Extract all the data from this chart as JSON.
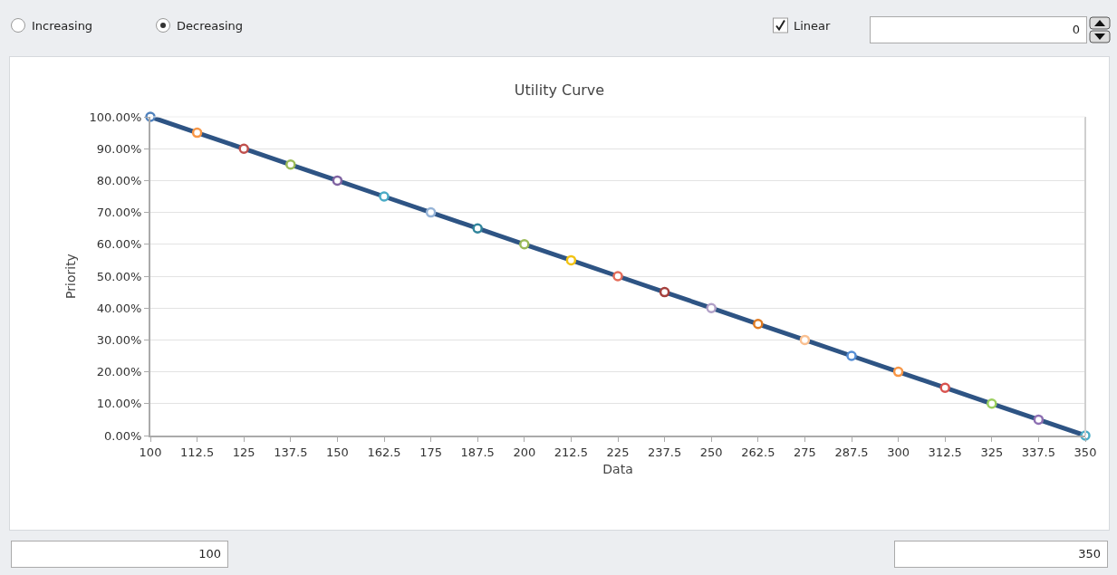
{
  "chart_data": {
    "type": "line",
    "title": "Utility Curve",
    "xlabel": "Data",
    "ylabel": "Priority",
    "x": [
      100,
      112.5,
      125,
      137.5,
      150,
      162.5,
      175,
      187.5,
      200,
      212.5,
      225,
      237.5,
      250,
      262.5,
      275,
      287.5,
      300,
      312.5,
      325,
      337.5,
      350
    ],
    "series": [
      {
        "color": "#2e5484",
        "values": [
          100,
          95,
          90,
          85,
          80,
          75,
          70,
          65,
          60,
          55,
          50,
          45,
          40,
          35,
          30,
          25,
          20,
          15,
          10,
          5,
          0
        ],
        "colors": [
          "#4f81bd",
          "#f79646",
          "#c0504d",
          "#9bbb59",
          "#8064a2",
          "#4bacc6",
          "#95b3d7",
          "#31859c",
          "#9bbb59",
          "#f2c314",
          "#e46c5a",
          "#a5403d",
          "#b1a0c7",
          "#e07b22",
          "#fac090",
          "#558ed5",
          "#f79646",
          "#d9534f",
          "#9bcf5f",
          "#8d6fb2",
          "#4bacc6"
        ]
      }
    ],
    "xlim": [
      100,
      350
    ],
    "xticks": [
      100,
      112.5,
      125,
      137.5,
      150,
      162.5,
      175,
      187.5,
      200,
      212.5,
      225,
      237.5,
      250,
      262.5,
      275,
      287.5,
      300,
      312.5,
      325,
      337.5,
      350
    ],
    "ylim": [
      0,
      100
    ],
    "yticks": [
      {
        "value": 0,
        "label": "0.00%"
      },
      {
        "value": 10,
        "label": "10.00%"
      },
      {
        "value": 20,
        "label": "20.00%"
      },
      {
        "value": 30,
        "label": "30.00%"
      },
      {
        "value": 40,
        "label": "40.00%"
      },
      {
        "value": 50,
        "label": "50.00%"
      },
      {
        "value": 60,
        "label": "60.00%"
      },
      {
        "value": 70,
        "label": "70.00%"
      },
      {
        "value": 80,
        "label": "80.00%"
      },
      {
        "value": 90,
        "label": "90.00%"
      },
      {
        "value": 100,
        "label": "100.00%"
      }
    ],
    "grid": "y",
    "marker": "circle",
    "line_style": "solid",
    "annotations": [
      "Increasing",
      "Decreasing",
      "Linear",
      "0",
      "100",
      "350"
    ]
  }
}
